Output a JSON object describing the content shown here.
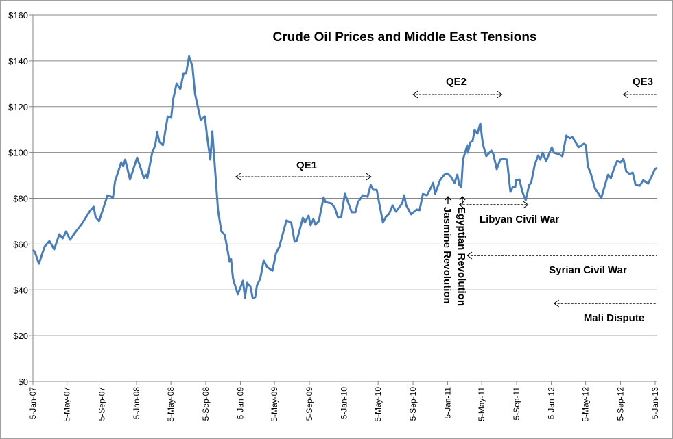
{
  "chart_data": {
    "type": "line",
    "title": "Crude Oil Prices and Middle East Tensions",
    "xlabel": "",
    "ylabel": "",
    "ylim": [
      0,
      160
    ],
    "xlim": [
      "2007-01-05",
      "2013-01-05"
    ],
    "grid": "horizontal",
    "line_color": "#4a7ebb",
    "y_ticks": [
      "$0",
      "$20",
      "$40",
      "$60",
      "$80",
      "$100",
      "$120",
      "$140",
      "$160"
    ],
    "y_tick_values": [
      0,
      20,
      40,
      60,
      80,
      100,
      120,
      140,
      160
    ],
    "x_ticks": [
      "5-Jan-07",
      "5-May-07",
      "5-Sep-07",
      "5-Jan-08",
      "5-May-08",
      "5-Sep-08",
      "5-Jan-09",
      "5-May-09",
      "5-Sep-09",
      "5-Jan-10",
      "5-May-10",
      "5-Sep-10",
      "5-Jan-11",
      "5-May-11",
      "5-Sep-11",
      "5-Jan-12",
      "5-May-12",
      "5-Sep-12",
      "5-Jan-13"
    ],
    "x_tick_dates": [
      "2007-01-05",
      "2007-05-05",
      "2007-09-05",
      "2008-01-05",
      "2008-05-05",
      "2008-09-05",
      "2009-01-05",
      "2009-05-05",
      "2009-09-05",
      "2010-01-05",
      "2010-05-05",
      "2010-09-05",
      "2011-01-05",
      "2011-05-05",
      "2011-09-05",
      "2012-01-05",
      "2012-05-05",
      "2012-09-05",
      "2013-01-05"
    ],
    "series": [
      {
        "x": [
          "2007-01-05",
          "2007-01-12",
          "2007-01-26",
          "2007-02-15",
          "2007-03-04",
          "2007-03-21",
          "2007-04-08",
          "2007-04-20",
          "2007-05-02",
          "2007-05-16",
          "2007-06-02",
          "2007-06-26",
          "2007-07-25",
          "2007-08-07",
          "2007-08-14",
          "2007-08-26",
          "2007-09-25",
          "2007-10-14",
          "2007-10-21",
          "2007-11-12",
          "2007-11-19",
          "2007-11-26",
          "2007-12-13",
          "2007-12-20",
          "2008-01-07",
          "2008-01-31",
          "2008-02-08",
          "2008-02-12",
          "2008-02-29",
          "2008-03-11",
          "2008-03-18",
          "2008-03-25",
          "2008-04-07",
          "2008-04-24",
          "2008-05-06",
          "2008-05-13",
          "2008-05-25",
          "2008-06-07",
          "2008-06-19",
          "2008-06-28",
          "2008-07-08",
          "2008-07-20",
          "2008-07-29",
          "2008-08-18",
          "2008-09-02",
          "2008-09-09",
          "2008-09-21",
          "2008-09-28",
          "2008-10-18",
          "2008-10-30",
          "2008-11-11",
          "2008-11-28",
          "2008-12-03",
          "2008-12-10",
          "2008-12-27",
          "2009-01-14",
          "2009-01-21",
          "2009-01-28",
          "2009-02-09",
          "2009-02-17",
          "2009-02-26",
          "2009-03-04",
          "2009-03-16",
          "2009-03-28",
          "2009-04-09",
          "2009-04-28",
          "2009-05-10",
          "2009-05-22",
          "2009-06-16",
          "2009-07-03",
          "2009-07-15",
          "2009-07-22",
          "2009-08-01",
          "2009-08-13",
          "2009-08-20",
          "2009-09-02",
          "2009-09-09",
          "2009-09-19",
          "2009-09-26",
          "2009-10-08",
          "2009-10-25",
          "2009-11-01",
          "2009-11-21",
          "2009-12-03",
          "2009-12-15",
          "2009-12-26",
          "2010-01-08",
          "2010-02-01",
          "2010-02-14",
          "2010-02-23",
          "2010-03-12",
          "2010-03-29",
          "2010-04-09",
          "2010-04-18",
          "2010-04-30",
          "2010-05-22",
          "2010-06-01",
          "2010-06-13",
          "2010-06-25",
          "2010-07-07",
          "2010-07-29",
          "2010-08-05",
          "2010-08-12",
          "2010-08-29",
          "2010-09-18",
          "2010-09-28",
          "2010-10-10",
          "2010-10-24",
          "2010-11-03",
          "2010-11-15",
          "2010-11-22",
          "2010-12-09",
          "2010-12-24",
          "2011-01-03",
          "2011-01-15",
          "2011-01-29",
          "2011-02-08",
          "2011-02-15",
          "2011-02-22",
          "2011-02-28",
          "2011-03-15",
          "2011-03-17",
          "2011-03-26",
          "2011-04-03",
          "2011-04-10",
          "2011-04-20",
          "2011-04-30",
          "2011-05-09",
          "2011-05-21",
          "2011-06-08",
          "2011-06-15",
          "2011-06-27",
          "2011-07-09",
          "2011-07-21",
          "2011-08-02",
          "2011-08-14",
          "2011-08-22",
          "2011-08-31",
          "2011-09-03",
          "2011-09-15",
          "2011-09-25",
          "2011-10-07",
          "2011-10-19",
          "2011-10-26",
          "2011-11-08",
          "2011-11-20",
          "2011-11-27",
          "2011-12-06",
          "2011-12-18",
          "2012-01-07",
          "2012-01-14",
          "2012-01-31",
          "2012-02-13",
          "2012-02-27",
          "2012-03-11",
          "2012-03-19",
          "2012-04-10",
          "2012-04-29",
          "2012-05-06",
          "2012-05-13",
          "2012-05-23",
          "2012-06-07",
          "2012-06-29",
          "2012-07-11",
          "2012-07-23",
          "2012-08-02",
          "2012-08-12",
          "2012-08-24",
          "2012-09-05",
          "2012-09-15",
          "2012-09-25",
          "2012-10-07",
          "2012-10-18",
          "2012-10-28",
          "2012-11-12",
          "2012-11-24",
          "2012-12-11",
          "2012-12-23",
          "2013-01-04",
          "2013-01-12"
        ],
        "y": [
          57.5,
          56.5,
          51.4,
          58.9,
          61.3,
          57.7,
          64.3,
          62.5,
          65.5,
          61.9,
          64.9,
          68.8,
          74.5,
          76.3,
          71.8,
          70.0,
          81.3,
          80.4,
          87.3,
          95.7,
          93.9,
          96.9,
          88.2,
          90.9,
          97.8,
          88.8,
          90.3,
          88.8,
          99.9,
          103.2,
          108.9,
          104.7,
          103.2,
          115.7,
          115.1,
          123.2,
          130.1,
          127.7,
          134.6,
          134.6,
          142.0,
          137.6,
          125.6,
          114.2,
          115.7,
          107.7,
          96.9,
          109.2,
          74.8,
          65.5,
          64.0,
          52.3,
          53.5,
          44.9,
          38.0,
          44.0,
          36.5,
          43.1,
          41.6,
          36.5,
          36.8,
          41.9,
          44.9,
          52.9,
          49.9,
          48.4,
          55.9,
          58.9,
          70.3,
          69.4,
          61.0,
          61.3,
          65.8,
          71.5,
          69.4,
          72.4,
          68.2,
          70.9,
          68.5,
          70.0,
          80.4,
          78.3,
          77.8,
          76.0,
          71.5,
          71.8,
          82.0,
          73.9,
          73.9,
          78.3,
          81.3,
          80.7,
          85.8,
          83.7,
          83.7,
          69.4,
          71.8,
          73.3,
          76.9,
          74.2,
          77.8,
          81.3,
          76.9,
          73.0,
          75.1,
          74.8,
          81.9,
          81.3,
          83.7,
          86.7,
          81.9,
          87.9,
          90.3,
          90.9,
          89.7,
          86.7,
          90.3,
          85.8,
          84.9,
          96.9,
          103.2,
          99.9,
          104.4,
          105.0,
          109.8,
          108.3,
          112.7,
          103.8,
          98.4,
          100.8,
          99.3,
          92.7,
          96.9,
          97.2,
          96.9,
          82.8,
          84.9,
          84.9,
          87.9,
          88.2,
          82.8,
          79.2,
          85.8,
          86.7,
          94.8,
          98.7,
          96.9,
          99.9,
          96.3,
          102.3,
          99.9,
          99.3,
          98.4,
          107.4,
          106.2,
          106.8,
          102.3,
          103.8,
          103.2,
          93.9,
          90.9,
          84.3,
          80.1,
          85.2,
          90.3,
          88.8,
          92.7,
          96.3,
          95.7,
          97.2,
          91.8,
          90.6,
          91.2,
          85.8,
          85.5,
          87.9,
          86.4,
          89.4,
          92.7,
          93.3
        ]
      }
    ],
    "annotations": {
      "qe1": {
        "label": "QE1",
        "from": "2008-12-20",
        "to": "2010-04-10",
        "arrows": "both"
      },
      "qe2": {
        "label": "QE2",
        "from": "2010-09-05",
        "to": "2011-07-15",
        "arrows": "both"
      },
      "qe3": {
        "label": "QE3",
        "from": "2012-09-15",
        "to": "2013-01-12",
        "arrows": "left"
      },
      "jasmine": {
        "label": "Jasmine Revolution",
        "date": "2010-12-20"
      },
      "egyptian": {
        "label": "Egyptian Revolution",
        "date": "2011-02-01"
      },
      "libyan": {
        "label": "Libyan Civil War",
        "from": "2011-02-15",
        "to": "2011-10-15",
        "arrows": "both"
      },
      "syrian": {
        "label": "Syrian Civil War",
        "from": "2011-03-15",
        "to": "2013-01-12",
        "arrows": "left"
      },
      "mali": {
        "label": "Mali Dispute",
        "from": "2012-01-15",
        "to": "2013-01-12",
        "arrows": "left"
      }
    }
  }
}
